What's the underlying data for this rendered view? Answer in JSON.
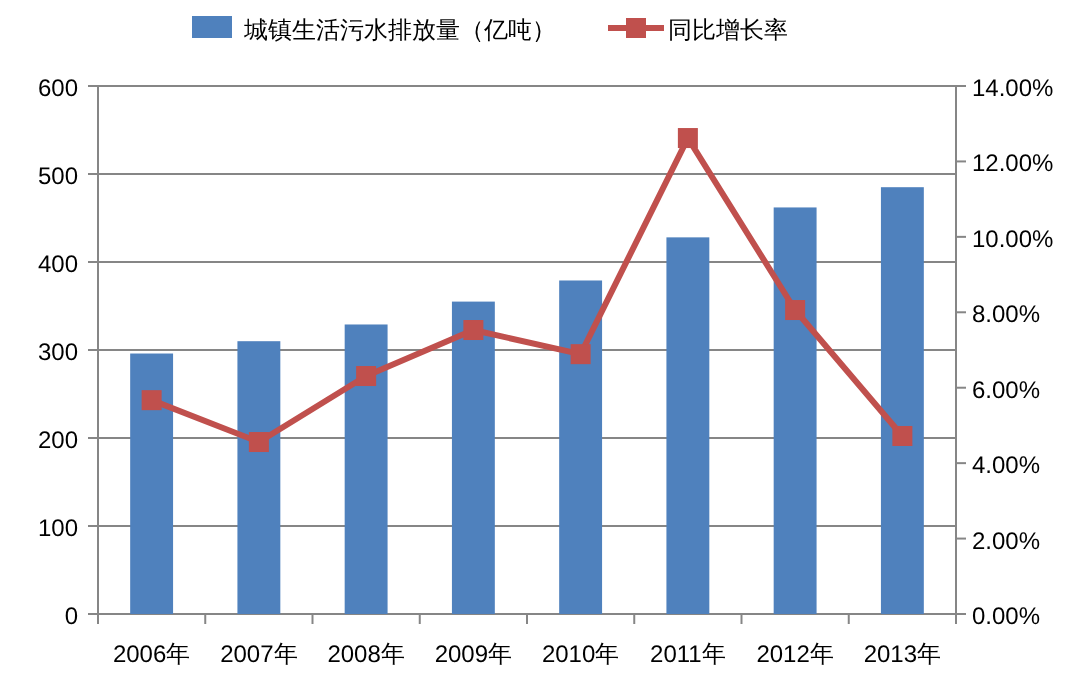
{
  "chart_data": {
    "type": "bar",
    "categories": [
      "2006年",
      "2007年",
      "2008年",
      "2009年",
      "2010年",
      "2011年",
      "2012年",
      "2013年"
    ],
    "series": [
      {
        "name": "城镇生活污水排放量（亿吨）",
        "color": "#4f81bd",
        "values": [
          296,
          310,
          329,
          355,
          379,
          428,
          462,
          485
        ]
      },
      {
        "name": "同比增长率",
        "type": "line",
        "axis": "y2",
        "color": "#c0504d",
        "marker": "square",
        "values": [
          5.67,
          4.56,
          6.31,
          7.53,
          6.89,
          12.62,
          8.06,
          4.72
        ]
      }
    ],
    "ylim": [
      0,
      600
    ],
    "yticks": [
      0,
      100,
      200,
      300,
      400,
      500,
      600
    ],
    "y2lim": [
      0,
      14
    ],
    "y2ticks": [
      {
        "value": 0,
        "label": "0.00%"
      },
      {
        "value": 2,
        "label": "2.00%"
      },
      {
        "value": 4,
        "label": "4.00%"
      },
      {
        "value": 6,
        "label": "6.00%"
      },
      {
        "value": 8,
        "label": "8.00%"
      },
      {
        "value": 10,
        "label": "10.00%"
      },
      {
        "value": 12,
        "label": "12.00%"
      },
      {
        "value": 14,
        "label": "14.00%"
      }
    ],
    "grid": "y",
    "legend": "top"
  }
}
